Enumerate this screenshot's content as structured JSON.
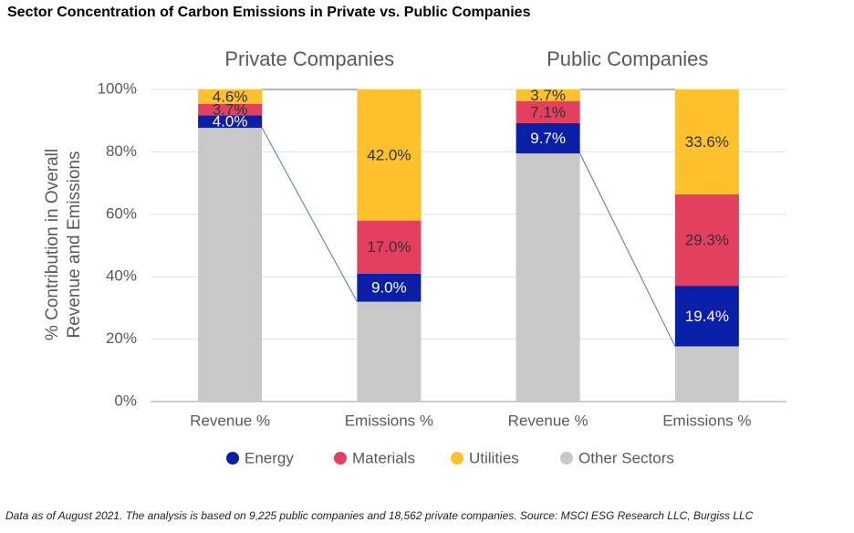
{
  "chart_data": {
    "type": "stacked-bar",
    "title": "Sector Concentration of Carbon Emissions in Private vs. Public Companies",
    "groups": [
      {
        "name": "Private Companies",
        "categories": [
          0,
          1
        ]
      },
      {
        "name": "Public Companies",
        "categories": [
          2,
          3
        ]
      }
    ],
    "categories": [
      "Revenue %",
      "Emissions %",
      "Revenue %",
      "Emissions %"
    ],
    "series": [
      {
        "name": "Energy",
        "color": "#0a1fa8",
        "label_color": "#ffffff",
        "values": [
          4.0,
          9.0,
          9.7,
          19.4
        ],
        "value_labels": [
          "4.0%",
          "9.0%",
          "9.7%",
          "19.4%"
        ]
      },
      {
        "name": "Materials",
        "color": "#e2405e",
        "label_color": "#333333",
        "values": [
          3.7,
          17.0,
          7.1,
          29.3
        ],
        "value_labels": [
          "3.7%",
          "17.0%",
          "7.1%",
          "29.3%"
        ]
      },
      {
        "name": "Utilities",
        "color": "#fcc12c",
        "label_color": "#333333",
        "values": [
          4.6,
          42.0,
          3.7,
          33.6
        ],
        "value_labels": [
          "4.6%",
          "42.0%",
          "3.7%",
          "33.6%"
        ]
      },
      {
        "name": "Other Sectors",
        "color": "#c8c8c8",
        "values": [
          87.7,
          32.0,
          79.5,
          17.7
        ]
      }
    ],
    "ylabel": [
      "% Contribution in Overall",
      "Revenue and Emissions"
    ],
    "ylim": [
      0,
      100
    ],
    "yticks": [
      {
        "value": 0,
        "label": "0%"
      },
      {
        "value": 20,
        "label": "20%"
      },
      {
        "value": 40,
        "label": "40%"
      },
      {
        "value": 60,
        "label": "60%"
      },
      {
        "value": 80,
        "label": "80%"
      },
      {
        "value": 100,
        "label": "100%"
      }
    ],
    "grid": true,
    "legend": "bottom",
    "footnote": "Data as of August 2021. The analysis is based on 9,225 public companies and 18,562 private companies. Source: MSCI ESG Research LLC, Burgiss LLC"
  }
}
